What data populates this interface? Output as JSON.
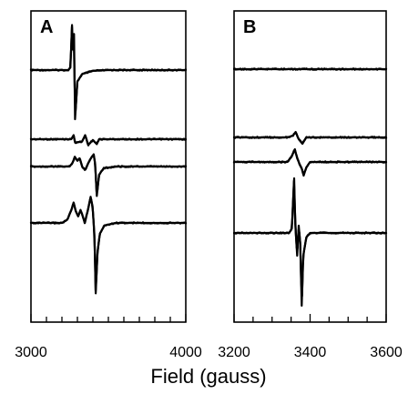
{
  "chart_data": [
    {
      "type": "line",
      "panel_label": "A",
      "xlim": [
        3000,
        4000
      ],
      "xticks": [
        3000,
        3100,
        3200,
        3300,
        3400,
        3500,
        3600,
        3700,
        3800,
        3900,
        4000
      ],
      "xtick_labels": [
        {
          "value": 3000,
          "text": "3000"
        },
        {
          "value": 4000,
          "text": "4000"
        }
      ],
      "grid": false,
      "series": [
        {
          "points": [
            [
              3000,
              0
            ],
            [
              3240,
              0
            ],
            [
              3255,
              0.3
            ],
            [
              3265,
              5.5
            ],
            [
              3270,
              2.5
            ],
            [
              3278,
              4.4
            ],
            [
              3285,
              -6.0
            ],
            [
              3300,
              -1.4
            ],
            [
              3330,
              -0.5
            ],
            [
              3400,
              -0.1
            ],
            [
              3500,
              0
            ],
            [
              4000,
              0
            ]
          ]
        },
        {
          "points": [
            [
              3000,
              0
            ],
            [
              3260,
              0
            ],
            [
              3275,
              0.5
            ],
            [
              3285,
              -0.4
            ],
            [
              3330,
              -0.3
            ],
            [
              3350,
              0.5
            ],
            [
              3370,
              -0.7
            ],
            [
              3400,
              -0.1
            ],
            [
              3425,
              -0.6
            ],
            [
              3440,
              0
            ],
            [
              3500,
              0
            ],
            [
              4000,
              0
            ]
          ]
        },
        {
          "points": [
            [
              3000,
              0
            ],
            [
              3250,
              0
            ],
            [
              3270,
              0.5
            ],
            [
              3283,
              1.2
            ],
            [
              3300,
              0.7
            ],
            [
              3315,
              1.0
            ],
            [
              3333,
              -0.1
            ],
            [
              3350,
              -0.4
            ],
            [
              3380,
              0.8
            ],
            [
              3405,
              1.5
            ],
            [
              3415,
              0.3
            ],
            [
              3425,
              -3.6
            ],
            [
              3440,
              -1.0
            ],
            [
              3470,
              -0.2
            ],
            [
              3550,
              0
            ],
            [
              4000,
              0
            ]
          ]
        },
        {
          "points": [
            [
              3000,
              0
            ],
            [
              3200,
              0
            ],
            [
              3235,
              0.4
            ],
            [
              3262,
              1.6
            ],
            [
              3275,
              2.5
            ],
            [
              3290,
              1.4
            ],
            [
              3305,
              0.8
            ],
            [
              3320,
              1.6
            ],
            [
              3333,
              0.9
            ],
            [
              3348,
              0.0
            ],
            [
              3370,
              1.8
            ],
            [
              3385,
              3.2
            ],
            [
              3398,
              2.0
            ],
            [
              3410,
              -1.5
            ],
            [
              3418,
              -8.6
            ],
            [
              3430,
              -3.5
            ],
            [
              3445,
              -1.3
            ],
            [
              3475,
              -0.3
            ],
            [
              3550,
              0
            ],
            [
              4000,
              0
            ]
          ]
        }
      ]
    },
    {
      "type": "line",
      "panel_label": "B",
      "xlim": [
        3200,
        3600
      ],
      "xticks": [
        3200,
        3250,
        3300,
        3350,
        3400,
        3450,
        3500,
        3550,
        3600
      ],
      "xtick_labels": [
        {
          "value": 3200,
          "text": "3200"
        },
        {
          "value": 3400,
          "text": "3400"
        },
        {
          "value": 3600,
          "text": "3600"
        }
      ],
      "grid": false,
      "series": [
        {
          "points": [
            [
              3200,
              0
            ],
            [
              3600,
              0
            ]
          ]
        },
        {
          "points": [
            [
              3200,
              0
            ],
            [
              3340,
              0
            ],
            [
              3355,
              0.2
            ],
            [
              3362,
              0.6
            ],
            [
              3370,
              -0.2
            ],
            [
              3380,
              -0.7
            ],
            [
              3390,
              0
            ],
            [
              3600,
              0
            ]
          ]
        },
        {
          "points": [
            [
              3200,
              0
            ],
            [
              3340,
              0
            ],
            [
              3350,
              0.5
            ],
            [
              3360,
              1.4
            ],
            [
              3366,
              0.4
            ],
            [
              3372,
              -0.2
            ],
            [
              3378,
              -0.7
            ],
            [
              3383,
              -1.5
            ],
            [
              3390,
              -0.6
            ],
            [
              3400,
              0
            ],
            [
              3600,
              0
            ]
          ]
        },
        {
          "points": [
            [
              3200,
              0
            ],
            [
              3345,
              0
            ],
            [
              3352,
              0.5
            ],
            [
              3358,
              6.0
            ],
            [
              3361,
              1.0
            ],
            [
              3366,
              -2.5
            ],
            [
              3370,
              0.8
            ],
            [
              3374,
              -1.0
            ],
            [
              3378,
              -8.0
            ],
            [
              3382,
              -2.5
            ],
            [
              3390,
              -0.5
            ],
            [
              3400,
              0
            ],
            [
              3600,
              0
            ]
          ]
        }
      ]
    }
  ],
  "xlabel": "Field (gauss)"
}
